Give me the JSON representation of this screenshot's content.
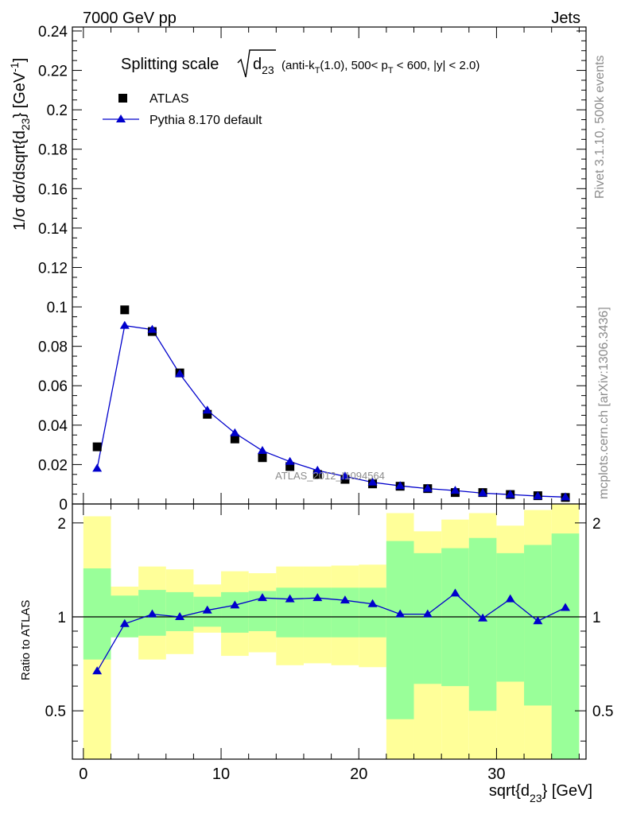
{
  "header": {
    "left": "7000 GeV pp",
    "right": "Jets"
  },
  "side_text": {
    "rivet": "Rivet 3.1.10,  500k events",
    "mcplots": "mcplots.cern.ch [arXiv:1306.3436]"
  },
  "watermark": "ATLAS_2012_I1094564",
  "chart_data": [
    {
      "type": "scatter",
      "title": {
        "prefix": "Splitting scale",
        "sqrt_arg": "d",
        "sqrt_arg_sub": "23",
        "selection": "(anti-k",
        "selection_sub": "T",
        "selection_mid": "(1.0), 500< p",
        "selection_sub2": "T",
        "selection_end": " < 600, |y| < 2.0)"
      },
      "ylabel": {
        "pre": "1/σ dσ/dsqrt{d",
        "sub": "23",
        "mid": "} [GeV",
        "sup": "-1",
        "post": "]"
      },
      "xlim": [
        -0.8,
        36.5
      ],
      "ylim": [
        0,
        0.242
      ],
      "y_ticks": [
        0,
        0.02,
        0.04,
        0.06,
        0.08,
        0.1,
        0.12,
        0.14,
        0.16,
        0.18,
        0.2,
        0.22,
        0.24
      ],
      "y_tick_labels": [
        "0",
        "0.02",
        "0.04",
        "0.06",
        "0.08",
        "0.1",
        "0.12",
        "0.14",
        "0.16",
        "0.18",
        "0.2",
        "0.22",
        "0.24"
      ],
      "legend_placement": "top-left",
      "x": [
        1,
        3,
        5,
        7,
        9,
        11,
        13,
        15,
        17,
        19,
        21,
        23,
        25,
        27,
        29,
        31,
        33,
        35
      ],
      "series": [
        {
          "name": "ATLAS",
          "marker": "square",
          "color": "#000000",
          "values": [
            0.029,
            0.0985,
            0.0875,
            0.0665,
            0.0455,
            0.033,
            0.0235,
            0.019,
            0.015,
            0.0125,
            0.0102,
            0.009,
            0.0078,
            0.0058,
            0.0058,
            0.0048,
            0.0042,
            0.0033
          ]
        },
        {
          "name": "Pythia 8.170 default",
          "marker": "triangle",
          "color": "#0000cc",
          "values": [
            0.018,
            0.0905,
            0.0885,
            0.066,
            0.0475,
            0.036,
            0.027,
            0.0215,
            0.017,
            0.014,
            0.011,
            0.0092,
            0.0078,
            0.0068,
            0.0055,
            0.0048,
            0.004,
            0.0035
          ]
        }
      ]
    },
    {
      "type": "line",
      "ylabel": "Ratio to ATLAS",
      "xlabel": {
        "pre": "sqrt{d",
        "sub": "23",
        "post": "} [GeV]"
      },
      "xlim": [
        -0.8,
        36.5
      ],
      "ylim": [
        0.35,
        2.3
      ],
      "x_ticks": [
        0,
        10,
        20,
        30
      ],
      "x_tick_labels": [
        "0",
        "10",
        "20",
        "30"
      ],
      "y_ticks": [
        0.5,
        1,
        2
      ],
      "y_tick_labels": [
        "0.5",
        "1",
        "2"
      ],
      "reference": 1,
      "bins": [
        [
          0,
          2
        ],
        [
          2,
          4
        ],
        [
          4,
          6
        ],
        [
          6,
          8
        ],
        [
          8,
          10
        ],
        [
          10,
          12
        ],
        [
          12,
          14
        ],
        [
          14,
          16
        ],
        [
          16,
          18
        ],
        [
          18,
          20
        ],
        [
          20,
          22
        ],
        [
          22,
          24
        ],
        [
          24,
          26
        ],
        [
          26,
          28
        ],
        [
          28,
          30
        ],
        [
          30,
          32
        ],
        [
          32,
          34
        ],
        [
          34,
          36
        ]
      ],
      "band_colors": {
        "inner": "#99ff99",
        "outer": "#ffff99"
      },
      "inner_band": [
        [
          0.73,
          1.43
        ],
        [
          0.86,
          1.17
        ],
        [
          0.87,
          1.22
        ],
        [
          0.9,
          1.2
        ],
        [
          0.93,
          1.16
        ],
        [
          0.89,
          1.2
        ],
        [
          0.9,
          1.21
        ],
        [
          0.86,
          1.24
        ],
        [
          0.86,
          1.24
        ],
        [
          0.86,
          1.24
        ],
        [
          0.86,
          1.24
        ],
        [
          0.47,
          1.75
        ],
        [
          0.61,
          1.6
        ],
        [
          0.6,
          1.66
        ],
        [
          0.5,
          1.79
        ],
        [
          0.62,
          1.6
        ],
        [
          0.52,
          1.7
        ],
        [
          0.35,
          1.85
        ]
      ],
      "outer_band": [
        [
          0.35,
          2.1
        ],
        [
          0.86,
          1.25
        ],
        [
          0.73,
          1.45
        ],
        [
          0.76,
          1.42
        ],
        [
          0.89,
          1.27
        ],
        [
          0.75,
          1.4
        ],
        [
          0.77,
          1.38
        ],
        [
          0.7,
          1.45
        ],
        [
          0.71,
          1.45
        ],
        [
          0.7,
          1.46
        ],
        [
          0.69,
          1.47
        ],
        [
          0.35,
          2.15
        ],
        [
          0.35,
          1.88
        ],
        [
          0.35,
          2.05
        ],
        [
          0.35,
          2.15
        ],
        [
          0.35,
          1.96
        ],
        [
          0.35,
          2.2
        ],
        [
          0.35,
          2.35
        ]
      ],
      "series": [
        {
          "name": "Pythia 8.170 default",
          "color": "#0000cc",
          "values": [
            0.67,
            0.95,
            1.02,
            1.0,
            1.05,
            1.09,
            1.15,
            1.14,
            1.15,
            1.13,
            1.1,
            1.02,
            1.02,
            1.19,
            0.99,
            1.14,
            0.97,
            1.07
          ]
        }
      ]
    }
  ]
}
